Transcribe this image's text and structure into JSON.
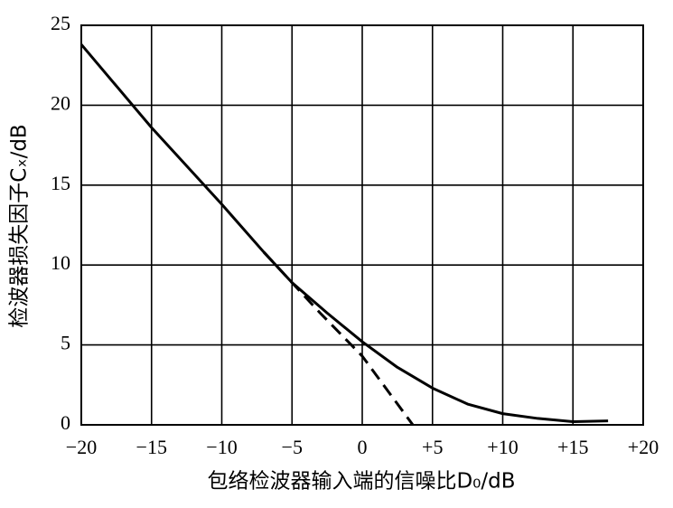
{
  "chart_data": {
    "type": "line",
    "xlabel": "包络检波器输入端的信噪比D₀/dB",
    "ylabel": "检波器损失因子Cₓ/dB",
    "xlim": [
      -20,
      20
    ],
    "ylim": [
      0,
      25
    ],
    "xticks": [
      {
        "value": -20,
        "label": "−20"
      },
      {
        "value": -15,
        "label": "−15"
      },
      {
        "value": -10,
        "label": "−10"
      },
      {
        "value": -5,
        "label": "−5"
      },
      0,
      {
        "value": 5,
        "label": "+5"
      },
      {
        "value": 10,
        "label": "+10"
      },
      {
        "value": 15,
        "label": "+15"
      },
      {
        "value": 20,
        "label": "+20"
      }
    ],
    "yticks": [
      0,
      5,
      10,
      15,
      20,
      25
    ],
    "grid": true,
    "series": [
      {
        "color": "#000000",
        "line_style": "solid",
        "x": [
          -20,
          -15,
          -10,
          -7,
          -5,
          -2.5,
          0,
          2.5,
          5,
          7.5,
          10,
          12.5,
          15,
          17.5
        ],
        "values": [
          23.8,
          18.6,
          13.8,
          10.8,
          8.9,
          7.0,
          5.2,
          3.6,
          2.3,
          1.3,
          0.7,
          0.4,
          0.2,
          0.25
        ]
      },
      {
        "color": "#000000",
        "line_style": "dashed",
        "x": [
          -7,
          -3,
          0,
          3.6
        ],
        "values": [
          10.8,
          7.0,
          4.3,
          0
        ]
      }
    ]
  }
}
